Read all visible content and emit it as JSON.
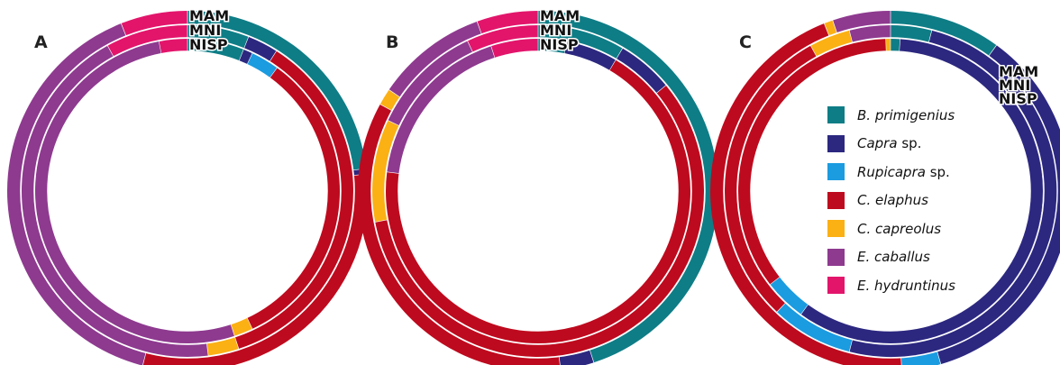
{
  "chart_data": [
    {
      "type": "donut",
      "panel": "A",
      "ring_labels": [
        "MAM",
        "MNI",
        "NISP"
      ],
      "rings": [
        {
          "name": "MAM",
          "values": {
            "B. primigenius": 23.0,
            "Capra sp.": 0.5,
            "Rupicapra sp.": 0.0,
            "C. elaphus": 30.5,
            "C. capreolus": 0.0,
            "E. caballus": 40.0,
            "E. hydruntinus": 6.0
          }
        },
        {
          "name": "MNI",
          "values": {
            "B. primigenius": 6.0,
            "Capra sp.": 3.0,
            "Rupicapra sp.": 0.0,
            "C. elaphus": 36.0,
            "C. capreolus": 3.0,
            "E. caballus": 44.0,
            "E. hydruntinus": 8.0
          }
        },
        {
          "name": "NISP",
          "values": {
            "B. primigenius": 6.0,
            "Capra sp.": 1.0,
            "Rupicapra sp.": 3.0,
            "C. elaphus": 33.0,
            "C. capreolus": 2.0,
            "E. caballus": 52.0,
            "E. hydruntinus": 3.0
          }
        }
      ]
    },
    {
      "type": "donut",
      "panel": "B",
      "ring_labels": [
        "MAM",
        "MNI",
        "NISP"
      ],
      "rings": [
        {
          "name": "MAM",
          "values": {
            "B. primigenius": 45.0,
            "Capra sp.": 3.0,
            "Rupicapra sp.": 0.0,
            "C. elaphus": 35.0,
            "C. capreolus": 1.5,
            "E. caballus": 10.0,
            "E. hydruntinus": 5.5
          }
        },
        {
          "name": "MNI",
          "values": {
            "B. primigenius": 8.5,
            "Capra sp.": 5.5,
            "Rupicapra sp.": 0.0,
            "C. elaphus": 58.0,
            "C. capreolus": 10.0,
            "E. caballus": 11.0,
            "E. hydruntinus": 7.0
          }
        },
        {
          "name": "NISP",
          "values": {
            "B. primigenius": 3.0,
            "Capra sp.": 5.5,
            "Rupicapra sp.": 0.0,
            "C. elaphus": 68.5,
            "C. capreolus": 0.0,
            "E. caballus": 18.0,
            "E. hydruntinus": 5.0
          }
        }
      ]
    },
    {
      "type": "donut",
      "panel": "C",
      "ring_labels": [
        "MAM",
        "MNI",
        "NISP"
      ],
      "rings": [
        {
          "name": "MAM",
          "values": {
            "B. primigenius": 10.0,
            "Capra sp.": 35.5,
            "Rupicapra sp.": 3.5,
            "C. elaphus": 45.0,
            "C. capreolus": 0.8,
            "E. caballus": 5.2,
            "E. hydruntinus": 0.0
          }
        },
        {
          "name": "MNI",
          "values": {
            "B. primigenius": 4.0,
            "Capra sp.": 50.0,
            "Rupicapra sp.": 8.0,
            "C. elaphus": 30.0,
            "C. capreolus": 4.0,
            "E. caballus": 4.0,
            "E. hydruntinus": 0.0
          }
        },
        {
          "name": "NISP",
          "values": {
            "B. primigenius": 1.0,
            "Capra sp.": 59.0,
            "Rupicapra sp.": 4.5,
            "C. elaphus": 35.0,
            "C. capreolus": 0.5,
            "E. caballus": 0.0,
            "E. hydruntinus": 0.0
          }
        }
      ]
    }
  ],
  "legend": [
    {
      "key": "B. primigenius",
      "italic": "B. primigenius",
      "suffix": "",
      "color": "#0e7d86"
    },
    {
      "key": "Capra sp.",
      "italic": "Capra",
      "suffix": " sp.",
      "color": "#2c2880"
    },
    {
      "key": "Rupicapra sp.",
      "italic": "Rupicapra",
      "suffix": " sp.",
      "color": "#1b9be0"
    },
    {
      "key": "C. elaphus",
      "italic": "C. elaphus",
      "suffix": "",
      "color": "#be0a1e"
    },
    {
      "key": "C. capreolus",
      "italic": "C. capreolus",
      "suffix": "",
      "color": "#fbb014"
    },
    {
      "key": "E. caballus",
      "italic": "E. caballus",
      "suffix": "",
      "color": "#8e3a8f"
    },
    {
      "key": "E. hydruntinus",
      "italic": "E. hydruntinus",
      "suffix": "",
      "color": "#e2156b"
    }
  ]
}
